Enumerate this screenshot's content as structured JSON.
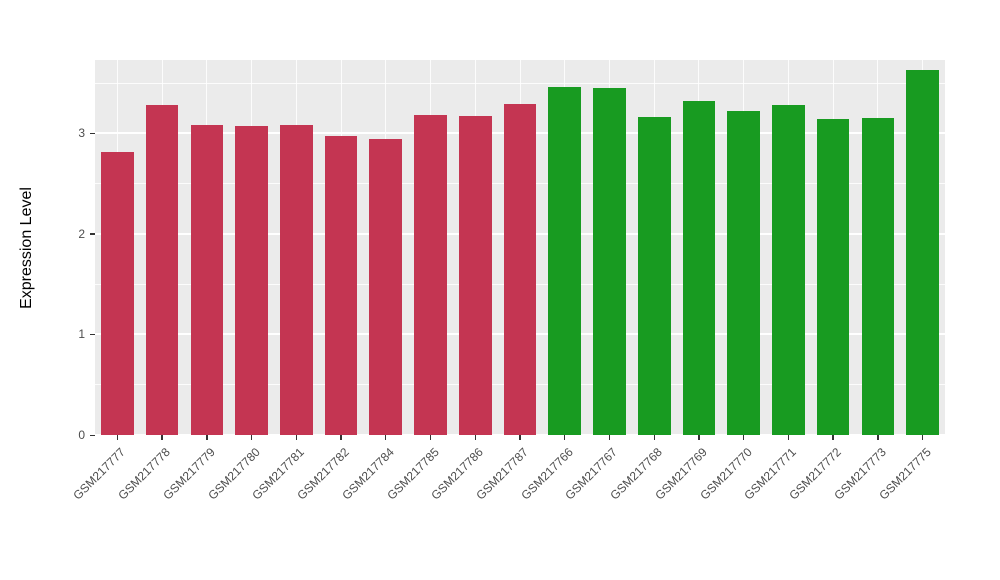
{
  "chart_data": {
    "type": "bar",
    "title": "",
    "xlabel": "",
    "ylabel": "Expression Level",
    "categories": [
      "GSM217777",
      "GSM217778",
      "GSM217779",
      "GSM217780",
      "GSM217781",
      "GSM217782",
      "GSM217784",
      "GSM217785",
      "GSM217786",
      "GSM217787",
      "GSM217766",
      "GSM217767",
      "GSM217768",
      "GSM217769",
      "GSM217770",
      "GSM217771",
      "GSM217772",
      "GSM217773",
      "GSM217775"
    ],
    "values": [
      2.81,
      3.28,
      3.08,
      3.07,
      3.08,
      2.97,
      2.94,
      3.18,
      3.17,
      3.29,
      3.46,
      3.45,
      3.16,
      3.32,
      3.22,
      3.28,
      3.14,
      3.15,
      3.63
    ],
    "groups": [
      "group1",
      "group1",
      "group1",
      "group1",
      "group1",
      "group1",
      "group1",
      "group1",
      "group1",
      "group1",
      "group2",
      "group2",
      "group2",
      "group2",
      "group2",
      "group2",
      "group2",
      "group2",
      "group2"
    ],
    "group_colors": {
      "group1": "#C43552",
      "group2": "#189B21"
    },
    "ylim": [
      0,
      3.73
    ],
    "yticks": [
      0,
      1,
      2,
      3
    ],
    "minor_yticks": [
      0.5,
      1.5,
      2.5,
      3.5
    ],
    "grid": true,
    "legend": "none",
    "panel_bg": "#EBEBEB",
    "grid_color": "#FFFFFF",
    "axis_text_color": "#4D4D4D"
  }
}
